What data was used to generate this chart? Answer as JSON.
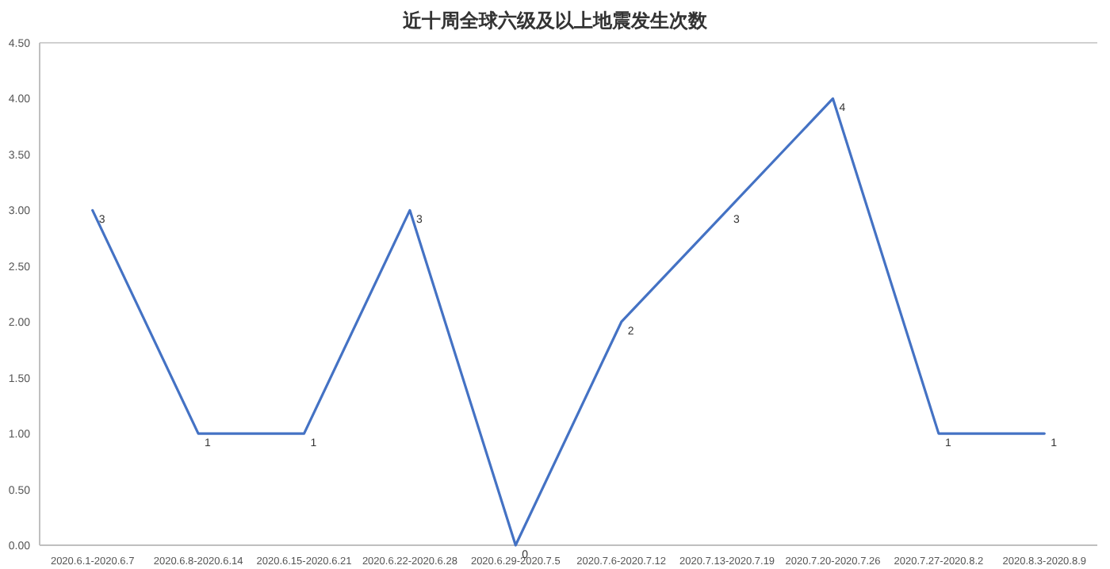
{
  "chart_data": {
    "type": "line",
    "title": "近十周全球六级及以上地震发生次数",
    "categories": [
      "2020.6.1-2020.6.7",
      "2020.6.8-2020.6.14",
      "2020.6.15-2020.6.21",
      "2020.6.22-2020.6.28",
      "2020.6.29-2020.7.5",
      "2020.7.6-2020.7.12",
      "2020.7.13-2020.7.19",
      "2020.7.20-2020.7.26",
      "2020.7.27-2020.8.2",
      "2020.8.3-2020.8.9"
    ],
    "series": [
      {
        "color": "#4472c4",
        "values": [
          3,
          1,
          1,
          3,
          0,
          2,
          3,
          4,
          1,
          1
        ]
      }
    ],
    "ylim": [
      0,
      4.5
    ],
    "yticks": [
      {
        "value": 0,
        "label": "0.00"
      },
      {
        "value": 0.5,
        "label": "0.50"
      },
      {
        "value": 1,
        "label": "1.00"
      },
      {
        "value": 1.5,
        "label": "1.50"
      },
      {
        "value": 2,
        "label": "2.00"
      },
      {
        "value": 2.5,
        "label": "2.50"
      },
      {
        "value": 3,
        "label": "3.00"
      },
      {
        "value": 3.5,
        "label": "3.50"
      },
      {
        "value": 4,
        "label": "4.00"
      },
      {
        "value": 4.5,
        "label": "4.50"
      }
    ],
    "data_labels": true,
    "grid": false,
    "marker": "none",
    "line_style": "solid"
  }
}
